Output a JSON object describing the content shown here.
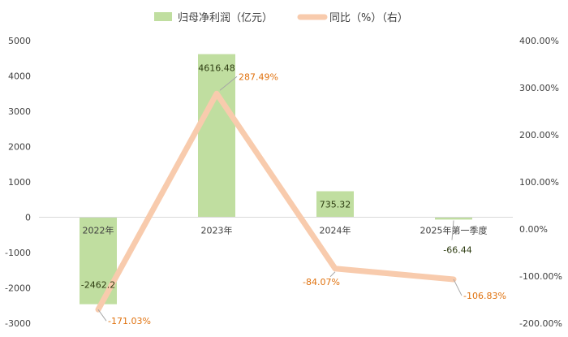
{
  "chart_data": {
    "type": "bar+line",
    "categories": [
      "2022年",
      "2023年",
      "2024年",
      "2025年第一季度"
    ],
    "series": [
      {
        "name": "归母净利润（亿元）",
        "type": "bar",
        "axis": "left",
        "values": [
          -2462.2,
          4616.48,
          735.32,
          -66.44
        ],
        "labels": [
          "-2462.2",
          "4616.48",
          "735.32",
          "-66.44"
        ],
        "color": "#c0dea0"
      },
      {
        "name": "同比（%）（右）",
        "type": "line",
        "axis": "right",
        "values": [
          -171.03,
          287.49,
          -84.07,
          -106.83
        ],
        "labels": [
          "-171.03%",
          "287.49%",
          "-84.07%",
          "-106.83%"
        ],
        "color": "#f8cbad"
      }
    ],
    "y_left": {
      "min": -3000,
      "max": 5000,
      "step": 1000
    },
    "y_right": {
      "min": -200,
      "max": 400,
      "step": 100,
      "format": "percent2"
    },
    "legend": "top-center",
    "grid": false
  }
}
